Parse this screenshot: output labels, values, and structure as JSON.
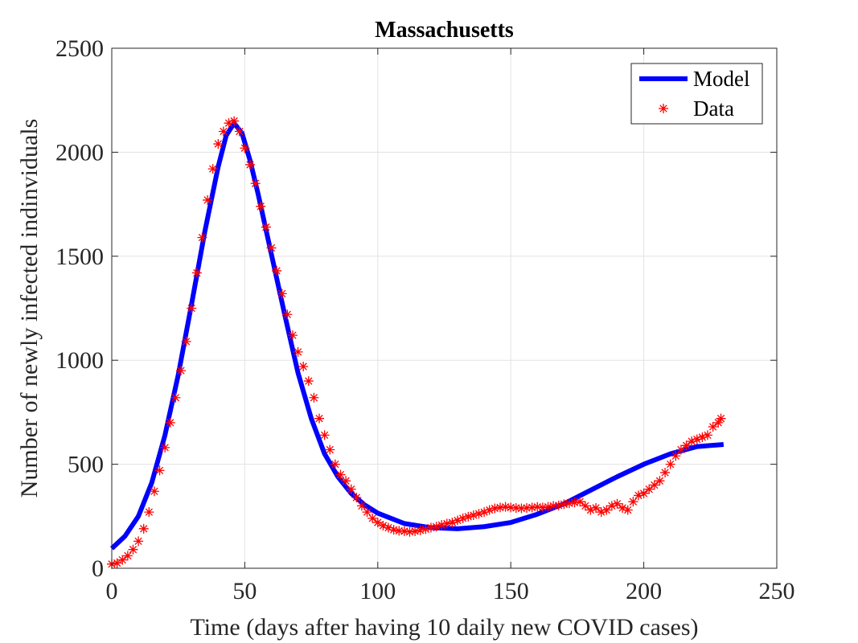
{
  "chart_data": {
    "type": "line",
    "title": "Massachusetts",
    "xlabel": "Time (days after having 10 daily new COVID cases)",
    "ylabel": "Number of newly infected indinviduals",
    "xlim": [
      0,
      250
    ],
    "ylim": [
      0,
      2500
    ],
    "xticks": [
      0,
      50,
      100,
      150,
      200,
      250
    ],
    "yticks": [
      0,
      500,
      1000,
      1500,
      2000,
      2500
    ],
    "grid": true,
    "legend_position": "top-right",
    "series": [
      {
        "name": "Model",
        "style": "line",
        "color": "#0000ff",
        "x": [
          0,
          5,
          10,
          15,
          20,
          25,
          30,
          35,
          40,
          43,
          46,
          49,
          52,
          55,
          60,
          65,
          70,
          75,
          80,
          85,
          90,
          95,
          100,
          110,
          120,
          130,
          140,
          150,
          160,
          170,
          180,
          190,
          200,
          210,
          220,
          230
        ],
        "y": [
          95,
          155,
          250,
          410,
          640,
          930,
          1270,
          1620,
          1930,
          2080,
          2140,
          2090,
          1960,
          1800,
          1510,
          1220,
          940,
          720,
          550,
          440,
          360,
          305,
          265,
          215,
          195,
          190,
          200,
          220,
          260,
          310,
          375,
          440,
          500,
          550,
          585,
          595
        ]
      },
      {
        "name": "Data",
        "style": "marker",
        "color": "#ff0000",
        "x": [
          0,
          2,
          4,
          6,
          8,
          10,
          12,
          14,
          16,
          18,
          20,
          22,
          24,
          26,
          28,
          30,
          32,
          34,
          36,
          38,
          40,
          42,
          44,
          46,
          48,
          50,
          52,
          54,
          56,
          58,
          60,
          62,
          64,
          66,
          68,
          70,
          72,
          74,
          76,
          78,
          80,
          82,
          84,
          86,
          88,
          90,
          92,
          94,
          96,
          98,
          100,
          102,
          104,
          106,
          108,
          110,
          112,
          114,
          116,
          118,
          120,
          122,
          124,
          126,
          128,
          130,
          132,
          134,
          136,
          138,
          140,
          142,
          144,
          146,
          148,
          150,
          152,
          154,
          156,
          158,
          160,
          162,
          164,
          166,
          168,
          170,
          172,
          174,
          176,
          178,
          180,
          182,
          184,
          186,
          188,
          190,
          192,
          194,
          196,
          198,
          200,
          202,
          204,
          206,
          208,
          210,
          212,
          214,
          216,
          218,
          220,
          222,
          224,
          226,
          228,
          229
        ],
        "y": [
          20,
          25,
          40,
          60,
          90,
          130,
          190,
          270,
          370,
          470,
          580,
          700,
          820,
          950,
          1090,
          1250,
          1420,
          1590,
          1770,
          1920,
          2040,
          2100,
          2140,
          2150,
          2100,
          2020,
          1940,
          1850,
          1740,
          1640,
          1540,
          1430,
          1320,
          1220,
          1120,
          1040,
          970,
          900,
          820,
          720,
          640,
          570,
          500,
          450,
          420,
          380,
          340,
          300,
          270,
          240,
          220,
          205,
          195,
          185,
          180,
          178,
          175,
          178,
          182,
          188,
          195,
          200,
          208,
          215,
          220,
          230,
          240,
          248,
          255,
          262,
          270,
          280,
          288,
          292,
          295,
          292,
          290,
          288,
          290,
          292,
          295,
          292,
          295,
          300,
          302,
          308,
          312,
          316,
          320,
          300,
          280,
          290,
          270,
          280,
          300,
          310,
          290,
          280,
          320,
          350,
          360,
          380,
          400,
          420,
          460,
          500,
          540,
          570,
          590,
          610,
          620,
          630,
          640,
          680,
          700,
          720
        ]
      }
    ]
  }
}
